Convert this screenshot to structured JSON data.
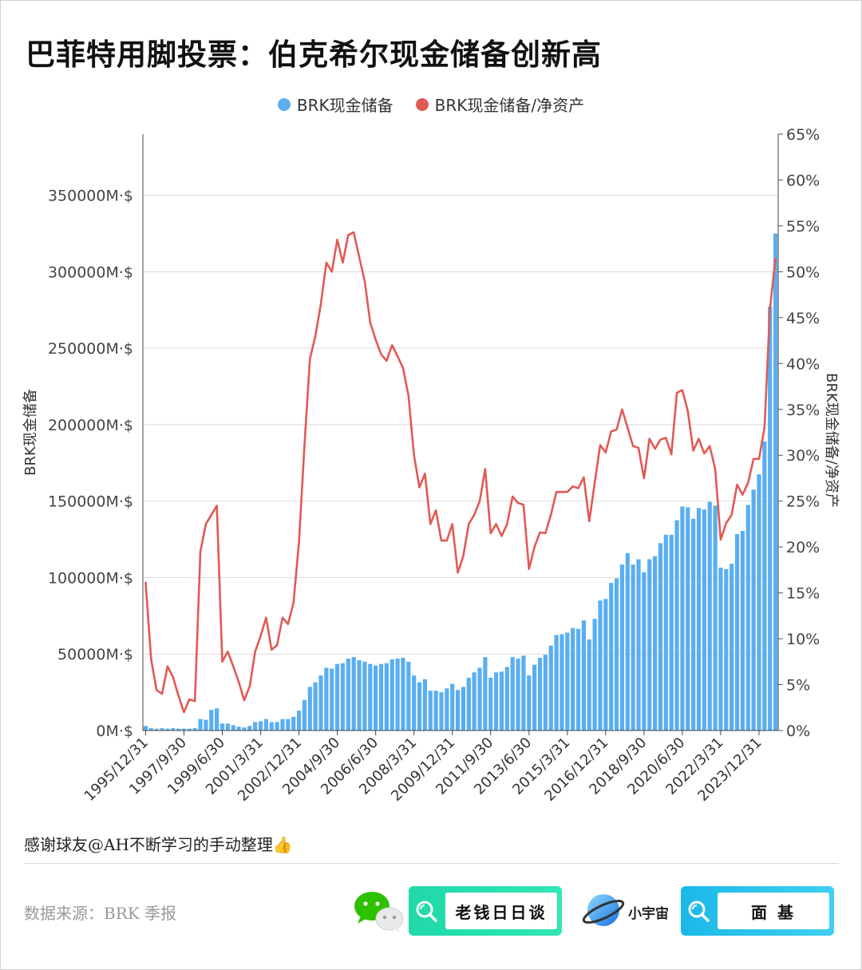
{
  "title": "巴菲特用脚投票：伯克希尔现金储备创新高",
  "legend": [
    {
      "label": "BRK现金储备",
      "color": "#5aaef0"
    },
    {
      "label": "BRK现金储备/净资产",
      "color": "#e05a55"
    }
  ],
  "footer": {
    "thanks": "感谢球友@AH不断学习的手动整理👍",
    "source": "数据来源：BRK 季报",
    "badge_1": "老钱日日谈",
    "brand": "小宇宙",
    "badge_2": "面 基"
  },
  "chart_data": {
    "type": "bar+line",
    "ylabel_left": "BRK现金储备",
    "ylabel_right": "BRK现金储备/净资产",
    "ylim_left": [
      0,
      390000
    ],
    "ylim_right": [
      0,
      65
    ],
    "yticks_left": [
      "0M·$",
      "50000M·$",
      "100000M·$",
      "150000M·$",
      "200000M·$",
      "250000M·$",
      "300000M·$",
      "350000M·$"
    ],
    "yticks_left_values": [
      0,
      50000,
      100000,
      150000,
      200000,
      250000,
      300000,
      350000
    ],
    "yticks_right": [
      "0%",
      "5%",
      "10%",
      "15%",
      "20%",
      "25%",
      "30%",
      "35%",
      "40%",
      "45%",
      "50%",
      "55%",
      "60%",
      "65%"
    ],
    "yticks_right_values": [
      0,
      5,
      10,
      15,
      20,
      25,
      30,
      35,
      40,
      45,
      50,
      55,
      60,
      65
    ],
    "xtick_labels": [
      "1995/12/31",
      "1997/9/30",
      "1999/6/30",
      "2001/3/31",
      "2002/12/31",
      "2004/9/30",
      "2006/6/30",
      "2008/3/31",
      "2009/12/31",
      "2011/9/30",
      "2013/6/30",
      "2015/3/31",
      "2016/12/31",
      "2018/9/30",
      "2020/6/30",
      "2022/3/31",
      "2023/12/31"
    ],
    "xtick_index": [
      0,
      7,
      14,
      21,
      28,
      35,
      42,
      49,
      56,
      63,
      70,
      77,
      84,
      91,
      98,
      105,
      112
    ],
    "series": [
      {
        "name": "BRK现金储备",
        "type": "bar",
        "unit": "M$",
        "values": [
          3000,
          1500,
          1200,
          1500,
          1200,
          1500,
          1200,
          1200,
          1200,
          1500,
          7500,
          7000,
          13500,
          14500,
          4500,
          4500,
          3500,
          2500,
          2000,
          3000,
          5500,
          6000,
          7500,
          5500,
          5500,
          7500,
          7500,
          9000,
          13000,
          20000,
          28500,
          31500,
          36000,
          41000,
          40500,
          43500,
          44000,
          47000,
          48000,
          46000,
          45000,
          43500,
          42500,
          43500,
          44000,
          46500,
          47000,
          47500,
          45000,
          36000,
          31500,
          33500,
          26000,
          26000,
          25000,
          27500,
          30500,
          26500,
          28500,
          34500,
          38000,
          41000,
          48000,
          34500,
          38000,
          38500,
          41500,
          48000,
          47000,
          49000,
          36000,
          43000,
          47500,
          49500,
          55500,
          62500,
          63000,
          64000,
          67000,
          66500,
          72000,
          59500,
          73000,
          85000,
          86000,
          96500,
          99500,
          108500,
          116000,
          108500,
          112000,
          103500,
          112000,
          114000,
          122500,
          128000,
          128000,
          137500,
          146500,
          146000,
          138500,
          145500,
          144500,
          149500,
          147000,
          106500,
          105500,
          109000,
          128500,
          130500,
          147500,
          157500,
          167500,
          189000,
          277000,
          325000
        ]
      },
      {
        "name": "BRK现金储备/净资产",
        "type": "line",
        "unit": "%",
        "values": [
          16.2,
          7.8,
          4.4,
          4.0,
          7.0,
          5.8,
          3.8,
          2.0,
          3.4,
          3.2,
          19.5,
          22.5,
          23.5,
          24.5,
          7.5,
          8.6,
          7.0,
          5.3,
          3.3,
          4.8,
          8.6,
          10.3,
          12.3,
          8.8,
          9.3,
          12.3,
          11.6,
          13.9,
          20.5,
          31.0,
          40.5,
          43.0,
          46.5,
          51.0,
          50.0,
          53.5,
          51.0,
          54.0,
          54.3,
          51.6,
          49.0,
          44.5,
          42.6,
          41.0,
          40.3,
          42.0,
          40.8,
          39.5,
          36.5,
          30.0,
          26.5,
          28.0,
          22.5,
          24.0,
          20.7,
          20.7,
          22.5,
          17.2,
          19.0,
          22.5,
          23.5,
          25.0,
          28.5,
          21.5,
          22.5,
          21.2,
          22.5,
          25.5,
          24.8,
          24.6,
          17.6,
          20.0,
          21.6,
          21.5,
          23.5,
          26.0,
          26.0,
          26.0,
          26.6,
          26.4,
          27.6,
          22.8,
          27.0,
          31.1,
          30.3,
          32.6,
          32.8,
          35.0,
          33.0,
          31.0,
          30.8,
          27.5,
          31.8,
          30.7,
          31.7,
          31.9,
          30.1,
          36.8,
          37.1,
          34.8,
          30.5,
          31.8,
          30.2,
          31.0,
          28.5,
          20.8,
          22.6,
          23.5,
          26.8,
          25.7,
          27.0,
          29.6,
          29.6,
          33.0,
          46.0,
          51.5
        ]
      }
    ]
  }
}
